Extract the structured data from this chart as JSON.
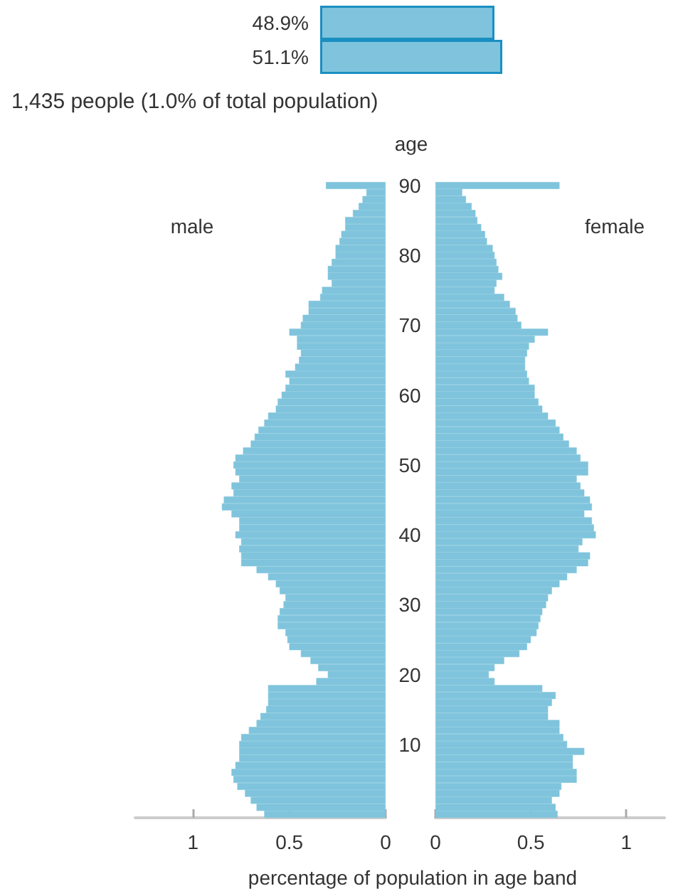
{
  "chart_data": [
    {
      "type": "bar",
      "orientation": "horizontal",
      "categories": [
        null,
        null
      ],
      "values": [
        48.9,
        51.1
      ],
      "value_labels": [
        "48.9%",
        "51.1%"
      ],
      "color": "#7fc4dc",
      "annotations": [
        "1,435 people (1.0% of total population)"
      ]
    },
    {
      "type": "bar",
      "orientation": "horizontal",
      "tick_labels": "x",
      "xlim": [
        1.3,
        0
      ],
      "xticks": [
        1,
        0.5,
        0
      ],
      "xlabel": "percentage of population in age band",
      "categories": [
        "90",
        null,
        null,
        null,
        null,
        null,
        null,
        null,
        null,
        null,
        "80",
        null,
        null,
        null,
        null,
        null,
        null,
        null,
        null,
        null,
        "70",
        null,
        null,
        null,
        null,
        null,
        null,
        null,
        null,
        null,
        "60",
        null,
        null,
        null,
        null,
        null,
        null,
        null,
        null,
        null,
        "50",
        null,
        null,
        null,
        null,
        null,
        null,
        null,
        null,
        null,
        "40",
        null,
        null,
        null,
        null,
        null,
        null,
        null,
        null,
        null,
        "30",
        null,
        null,
        null,
        null,
        null,
        null,
        null,
        null,
        null,
        "20",
        null,
        null,
        null,
        null,
        null,
        null,
        null,
        null,
        null,
        "10",
        null,
        null,
        null,
        null,
        null,
        null,
        null,
        null,
        null,
        null
      ],
      "series": [
        {
          "name": "male",
          "color": "#7fc4dc",
          "values": [
            0.31,
            0.1,
            0.12,
            0.14,
            0.17,
            0.21,
            0.21,
            0.23,
            0.24,
            0.26,
            0.26,
            0.28,
            0.3,
            0.3,
            0.28,
            0.33,
            0.34,
            0.4,
            0.4,
            0.43,
            0.44,
            0.5,
            0.46,
            0.46,
            0.44,
            0.45,
            0.47,
            0.52,
            0.5,
            0.52,
            0.54,
            0.56,
            0.57,
            0.61,
            0.63,
            0.66,
            0.68,
            0.7,
            0.74,
            0.78,
            0.79,
            0.78,
            0.76,
            0.8,
            0.79,
            0.84,
            0.85,
            0.8,
            0.76,
            0.76,
            0.78,
            0.75,
            0.76,
            0.75,
            0.75,
            0.67,
            0.61,
            0.57,
            0.55,
            0.52,
            0.53,
            0.55,
            0.56,
            0.56,
            0.52,
            0.51,
            0.5,
            0.44,
            0.39,
            0.35,
            0.3,
            0.36,
            0.61,
            0.61,
            0.61,
            0.62,
            0.65,
            0.67,
            0.71,
            0.75,
            0.76,
            0.76,
            0.76,
            0.78,
            0.8,
            0.79,
            0.77,
            0.73,
            0.7,
            0.67,
            0.63
          ]
        }
      ]
    },
    {
      "type": "bar",
      "orientation": "horizontal",
      "xlim": [
        0,
        1.2
      ],
      "xticks": [
        0,
        0.5,
        1
      ],
      "ylabel": "age",
      "categories": [
        "90",
        null,
        null,
        null,
        null,
        null,
        null,
        null,
        null,
        null,
        "80",
        null,
        null,
        null,
        null,
        null,
        null,
        null,
        null,
        null,
        "70",
        null,
        null,
        null,
        null,
        null,
        null,
        null,
        null,
        null,
        "60",
        null,
        null,
        null,
        null,
        null,
        null,
        null,
        null,
        null,
        "50",
        null,
        null,
        null,
        null,
        null,
        null,
        null,
        null,
        null,
        "40",
        null,
        null,
        null,
        null,
        null,
        null,
        null,
        null,
        null,
        "30",
        null,
        null,
        null,
        null,
        null,
        null,
        null,
        null,
        null,
        "20",
        null,
        null,
        null,
        null,
        null,
        null,
        null,
        null,
        null,
        "10",
        null,
        null,
        null,
        null,
        null,
        null,
        null,
        null,
        null,
        null
      ],
      "series": [
        {
          "name": "female",
          "color": "#7fc4dc",
          "values": [
            0.65,
            0.14,
            0.16,
            0.19,
            0.21,
            0.22,
            0.24,
            0.26,
            0.27,
            0.3,
            0.31,
            0.32,
            0.33,
            0.35,
            0.32,
            0.31,
            0.36,
            0.39,
            0.42,
            0.43,
            0.45,
            0.59,
            0.52,
            0.49,
            0.48,
            0.47,
            0.47,
            0.48,
            0.49,
            0.52,
            0.52,
            0.54,
            0.56,
            0.59,
            0.63,
            0.65,
            0.67,
            0.7,
            0.74,
            0.76,
            0.8,
            0.8,
            0.74,
            0.76,
            0.78,
            0.81,
            0.82,
            0.78,
            0.82,
            0.83,
            0.84,
            0.77,
            0.75,
            0.81,
            0.8,
            0.74,
            0.69,
            0.65,
            0.61,
            0.59,
            0.58,
            0.56,
            0.55,
            0.54,
            0.53,
            0.5,
            0.48,
            0.44,
            0.36,
            0.31,
            0.28,
            0.31,
            0.56,
            0.63,
            0.61,
            0.59,
            0.59,
            0.65,
            0.65,
            0.67,
            0.69,
            0.78,
            0.72,
            0.72,
            0.74,
            0.74,
            0.66,
            0.65,
            0.61,
            0.63,
            0.64
          ]
        }
      ]
    }
  ]
}
